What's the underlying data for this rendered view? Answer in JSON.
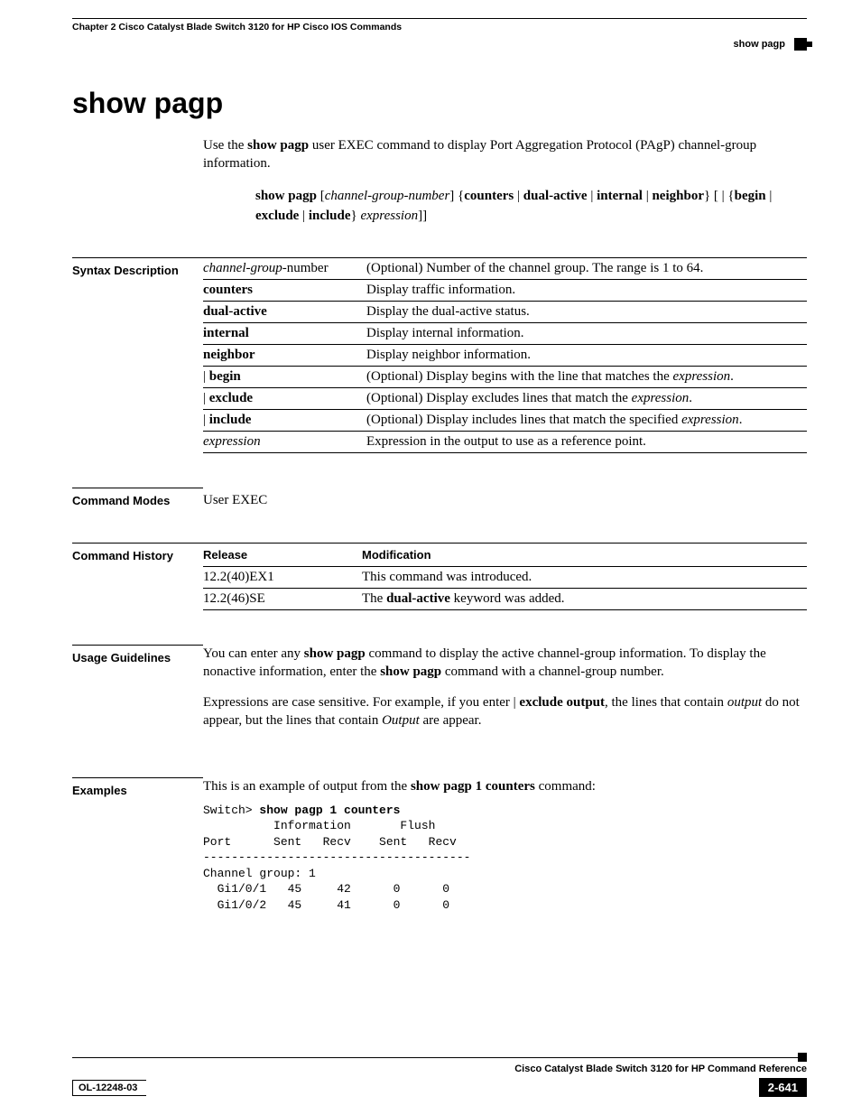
{
  "header": {
    "chapter_line": "Chapter 2  Cisco Catalyst Blade Switch 3120 for HP Cisco IOS Commands",
    "breadcrumb": "show pagp"
  },
  "title": "show pagp",
  "intro": "Use the <b>show pagp</b> user EXEC command to display Port Aggregation Protocol (PAgP) channel-group information.",
  "syntax_html": "<b>show pagp</b> [<i>channel-group-number</i>] {<b>counters</b> | <b>dual-active</b> | <b>internal</b> | <b>neighbor</b>} [ | {<b>begin</b> | <b>exclude</b> | <b>include</b>} <i>expression</i>]]",
  "sections": {
    "syntax_desc_label": "Syntax Description",
    "command_modes_label": "Command Modes",
    "command_history_label": "Command History",
    "usage_guidelines_label": "Usage Guidelines",
    "examples_label": "Examples"
  },
  "syntax_rows": [
    {
      "arg_html": "<i>channel-group</i>-number",
      "desc_html": "(Optional) Number of the channel group. The range is 1 to 64."
    },
    {
      "arg_html": "<b>counters</b>",
      "desc_html": "Display traffic information."
    },
    {
      "arg_html": "<b>dual-active</b>",
      "desc_html": "Display the dual-active status."
    },
    {
      "arg_html": "<b>internal</b>",
      "desc_html": "Display internal information."
    },
    {
      "arg_html": "<b>neighbor</b>",
      "desc_html": "Display neighbor information."
    },
    {
      "arg_html": "| <b>begin</b>",
      "desc_html": "(Optional) Display begins with the line that matches the <i>expression</i>."
    },
    {
      "arg_html": "| <b>exclude</b>",
      "desc_html": "(Optional) Display excludes lines that match the <i>expression</i>."
    },
    {
      "arg_html": "| <b>include</b>",
      "desc_html": "(Optional) Display includes lines that match the specified <i>expression</i>."
    },
    {
      "arg_html": "<i>expression</i>",
      "desc_html": "Expression in the output to use as a reference point."
    }
  ],
  "command_modes": "User EXEC",
  "history": {
    "head_release": "Release",
    "head_modification": "Modification",
    "rows": [
      {
        "release": "12.2(40)EX1",
        "mod_html": "This command was introduced."
      },
      {
        "release": "12.2(46)SE",
        "mod_html": "The <b>dual-active</b> keyword was added."
      }
    ]
  },
  "usage_paragraphs_html": [
    "You can enter any <b>show pagp</b> command to display the active channel-group information. To display the nonactive information, enter the <b>show pagp</b> command with a channel-group number.",
    "Expressions are case sensitive. For example, if you enter | <b>exclude output</b>, the lines that contain <i>output</i> do not appear, but the lines that contain <i>Output</i> are appear."
  ],
  "examples_intro_html": "This is an example of output from the <b>show pagp 1 counters</b> command:",
  "example_output": "Switch> <b>show pagp 1 counters</b>\n          Information       Flush\nPort      Sent   Recv    Sent   Recv\n--------------------------------------\nChannel group: 1\n  Gi1/0/1   45     42      0      0\n  Gi1/0/2   45     41      0      0",
  "footer": {
    "book_title": "Cisco Catalyst Blade Switch 3120 for HP Command Reference",
    "doc_id": "OL-12248-03",
    "page_number": "2-641"
  }
}
